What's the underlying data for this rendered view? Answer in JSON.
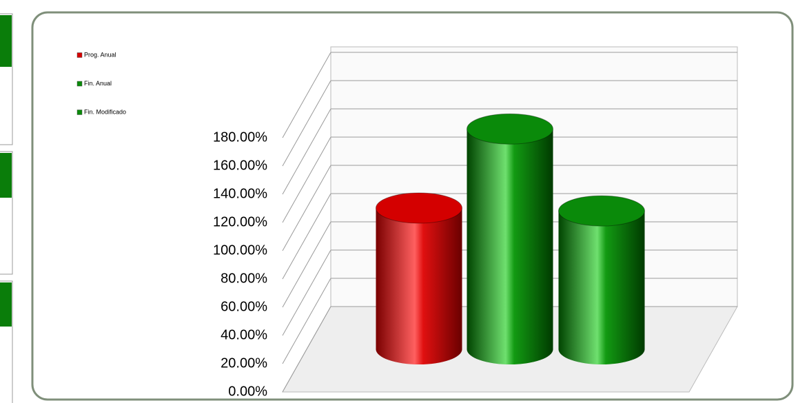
{
  "chart_data": {
    "type": "bar",
    "series": [
      {
        "name": "Prog. Anual",
        "color": "#d40000",
        "values": [
          100
        ]
      },
      {
        "name": "Fin. Anual",
        "color": "#0a8a0a",
        "values": [
          156
        ]
      },
      {
        "name": "Fin. Modificado",
        "color": "#0a8a0a",
        "values": [
          98
        ]
      }
    ],
    "ylim": [
      0,
      180
    ],
    "yticks": [
      {
        "value": 0,
        "label": "0.00%"
      },
      {
        "value": 20,
        "label": "20.00%"
      },
      {
        "value": 40,
        "label": "40.00%"
      },
      {
        "value": 60,
        "label": "60.00%"
      },
      {
        "value": 80,
        "label": "80.00%"
      },
      {
        "value": 100,
        "label": "100.00%"
      },
      {
        "value": 120,
        "label": "120.00%"
      },
      {
        "value": 140,
        "label": "140.00%"
      },
      {
        "value": 160,
        "label": "160.00%"
      },
      {
        "value": 180,
        "label": "180.00%"
      }
    ],
    "grid": true
  }
}
